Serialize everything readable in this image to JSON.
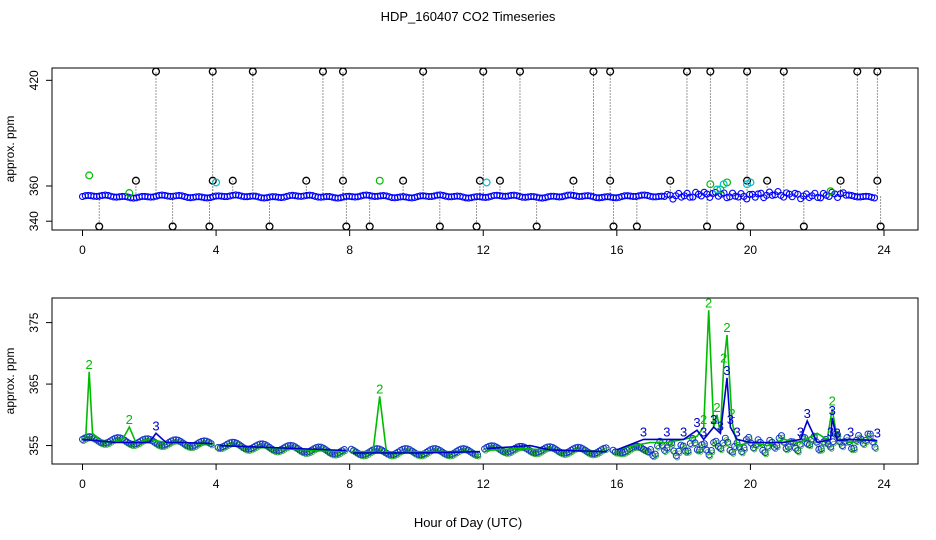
{
  "title": "HDP_160407  CO2 Timeseries",
  "xlabel": "Hour of Day (UTC)",
  "colors": {
    "baseline": "#0000ff",
    "outlier": "#000000",
    "flag2": "#00bb00",
    "flag3": "#0000cc",
    "flag_cyan": "#00bbcc"
  },
  "chart_data": [
    {
      "type": "scatter",
      "title": "HDP_160407  CO2 Timeseries",
      "ylabel": "approx. ppm",
      "xlim": [
        0,
        24
      ],
      "ylim": [
        335,
        427
      ],
      "xticks": [
        0,
        4,
        8,
        12,
        16,
        20,
        24
      ],
      "xtick_labels": [
        "0",
        "4",
        "8",
        "12",
        "16",
        "20",
        "24"
      ],
      "yticks": [
        340,
        360,
        420
      ],
      "ytick_labels": [
        "340",
        "360",
        "420"
      ],
      "baseline": {
        "start_hour": 0,
        "end_hour": 23.8,
        "level_ppm": 354
      },
      "outliers_high": [
        {
          "x": 2.2,
          "y": 425
        },
        {
          "x": 3.9,
          "y": 425
        },
        {
          "x": 5.1,
          "y": 425
        },
        {
          "x": 7.2,
          "y": 425
        },
        {
          "x": 7.8,
          "y": 425
        },
        {
          "x": 10.2,
          "y": 425
        },
        {
          "x": 12.0,
          "y": 425
        },
        {
          "x": 13.1,
          "y": 425
        },
        {
          "x": 15.3,
          "y": 425
        },
        {
          "x": 15.8,
          "y": 425
        },
        {
          "x": 18.1,
          "y": 425
        },
        {
          "x": 18.8,
          "y": 425
        },
        {
          "x": 19.9,
          "y": 425
        },
        {
          "x": 21.0,
          "y": 425
        },
        {
          "x": 23.2,
          "y": 425
        },
        {
          "x": 23.8,
          "y": 425
        }
      ],
      "outliers_mid": [
        {
          "x": 1.6,
          "y": 363
        },
        {
          "x": 3.9,
          "y": 363
        },
        {
          "x": 4.5,
          "y": 363
        },
        {
          "x": 6.7,
          "y": 363
        },
        {
          "x": 7.8,
          "y": 363
        },
        {
          "x": 9.6,
          "y": 363
        },
        {
          "x": 11.9,
          "y": 363
        },
        {
          "x": 12.5,
          "y": 363
        },
        {
          "x": 14.7,
          "y": 363
        },
        {
          "x": 15.8,
          "y": 363
        },
        {
          "x": 17.6,
          "y": 363
        },
        {
          "x": 19.9,
          "y": 363
        },
        {
          "x": 20.5,
          "y": 363
        },
        {
          "x": 22.7,
          "y": 363
        },
        {
          "x": 23.8,
          "y": 363
        }
      ],
      "outliers_low": [
        {
          "x": 0.5,
          "y": 337
        },
        {
          "x": 2.7,
          "y": 337
        },
        {
          "x": 3.8,
          "y": 337
        },
        {
          "x": 5.6,
          "y": 337
        },
        {
          "x": 7.9,
          "y": 337
        },
        {
          "x": 8.6,
          "y": 337
        },
        {
          "x": 10.7,
          "y": 337
        },
        {
          "x": 11.8,
          "y": 337
        },
        {
          "x": 13.6,
          "y": 337
        },
        {
          "x": 15.9,
          "y": 337
        },
        {
          "x": 16.6,
          "y": 337
        },
        {
          "x": 18.7,
          "y": 337
        },
        {
          "x": 19.7,
          "y": 337
        },
        {
          "x": 21.6,
          "y": 337
        },
        {
          "x": 23.9,
          "y": 337
        }
      ],
      "flag2_points": [
        {
          "x": 0.2,
          "y": 366
        },
        {
          "x": 1.4,
          "y": 356
        },
        {
          "x": 8.9,
          "y": 363
        },
        {
          "x": 18.8,
          "y": 361
        },
        {
          "x": 19.1,
          "y": 358
        },
        {
          "x": 19.3,
          "y": 362
        },
        {
          "x": 22.4,
          "y": 357
        }
      ],
      "cyan_points": [
        {
          "x": 4.0,
          "y": 362
        },
        {
          "x": 12.1,
          "y": 362
        },
        {
          "x": 19.0,
          "y": 358
        },
        {
          "x": 19.2,
          "y": 361
        },
        {
          "x": 19.9,
          "y": 361
        },
        {
          "x": 20.0,
          "y": 362
        }
      ]
    },
    {
      "type": "scatter",
      "ylabel": "approx. ppm",
      "xlim": [
        0,
        24
      ],
      "ylim": [
        352,
        379
      ],
      "xticks": [
        0,
        4,
        8,
        12,
        16,
        20,
        24
      ],
      "xtick_labels": [
        "0",
        "4",
        "8",
        "12",
        "16",
        "20",
        "24"
      ],
      "yticks": [
        355,
        365,
        375
      ],
      "ytick_labels": [
        "355",
        "365",
        "375"
      ],
      "gaps_hours": [
        3.95,
        7.95,
        11.95,
        15.8
      ],
      "series2": {
        "name": "2",
        "x": [
          0,
          0.1,
          0.2,
          0.3,
          0.5,
          0.8,
          1.2,
          1.4,
          1.6,
          2.0,
          2.5,
          3.0,
          3.5,
          3.9,
          4.1,
          5.0,
          6.0,
          7.0,
          7.9,
          8.1,
          8.7,
          8.9,
          9.1,
          9.5,
          10.0,
          11.0,
          11.9,
          12.1,
          13.0,
          14.0,
          15.0,
          15.7,
          16.0,
          16.5,
          17.0,
          17.5,
          18.0,
          18.4,
          18.6,
          18.75,
          18.9,
          19.0,
          19.1,
          19.2,
          19.3,
          19.45,
          19.6,
          20.0,
          20.5,
          21.0,
          21.5,
          22.0,
          22.3,
          22.45,
          22.6,
          23.0,
          23.5,
          23.8
        ],
        "y": [
          356,
          356.5,
          367,
          357,
          356,
          355.5,
          356,
          358,
          355.5,
          356,
          355.5,
          355.5,
          355.3,
          355.2,
          355,
          354.8,
          354.5,
          354.2,
          354,
          354,
          354,
          363,
          354,
          353.8,
          354,
          354,
          354,
          354.2,
          354.5,
          354.3,
          354.2,
          354,
          354.3,
          355,
          355.5,
          355.5,
          356,
          356.5,
          358,
          377,
          358,
          360,
          357,
          368,
          373,
          359,
          355,
          355.5,
          355,
          356,
          355.5,
          357,
          356,
          361,
          356,
          355.5,
          356,
          355.5
        ]
      },
      "series3": {
        "name": "3",
        "x": [
          0,
          0.4,
          1.0,
          2.0,
          2.2,
          2.5,
          3.0,
          3.9,
          4.1,
          6.0,
          7.9,
          8.1,
          10.0,
          11.9,
          12.1,
          13.4,
          14.0,
          15.7,
          16.0,
          16.8,
          17.5,
          18.0,
          18.4,
          18.6,
          18.9,
          19.1,
          19.3,
          19.4,
          19.6,
          20.0,
          20.5,
          21.0,
          21.5,
          21.7,
          22.0,
          22.4,
          22.45,
          22.6,
          23.0,
          23.8
        ],
        "y": [
          356,
          355.8,
          355.5,
          355.5,
          357,
          355.5,
          355.5,
          355.3,
          355,
          354.6,
          354.2,
          353.8,
          353.8,
          354,
          354.5,
          355,
          354.3,
          354,
          354.3,
          356,
          356,
          356,
          357.5,
          356,
          358,
          357,
          366,
          358,
          356,
          355.5,
          355.5,
          355.5,
          356,
          359,
          355.5,
          356,
          359.5,
          355.8,
          356,
          355.8
        ]
      }
    }
  ]
}
